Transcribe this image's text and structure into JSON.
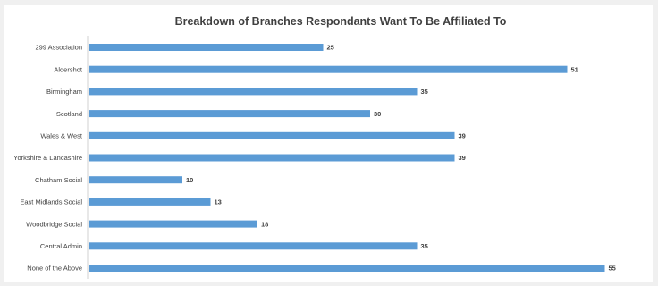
{
  "chart_data": {
    "type": "bar",
    "orientation": "horizontal",
    "title": "Breakdown of Branches Respondants Want To Be Affiliated To",
    "categories": [
      "299 Association",
      "Aldershot",
      "Birmingham",
      "Scotland",
      "Wales & West",
      "Yorkshire & Lancashire",
      "Chatham Social",
      "East Midlands Social",
      "Woodbridge Social",
      "Central Admin",
      "None of the Above"
    ],
    "values": [
      25,
      51,
      35,
      30,
      39,
      39,
      10,
      13,
      18,
      35,
      55
    ],
    "xlim": [
      0,
      60
    ],
    "data_labels": true,
    "grid": false,
    "legend": "none",
    "bar_color": "#5b9bd5"
  }
}
